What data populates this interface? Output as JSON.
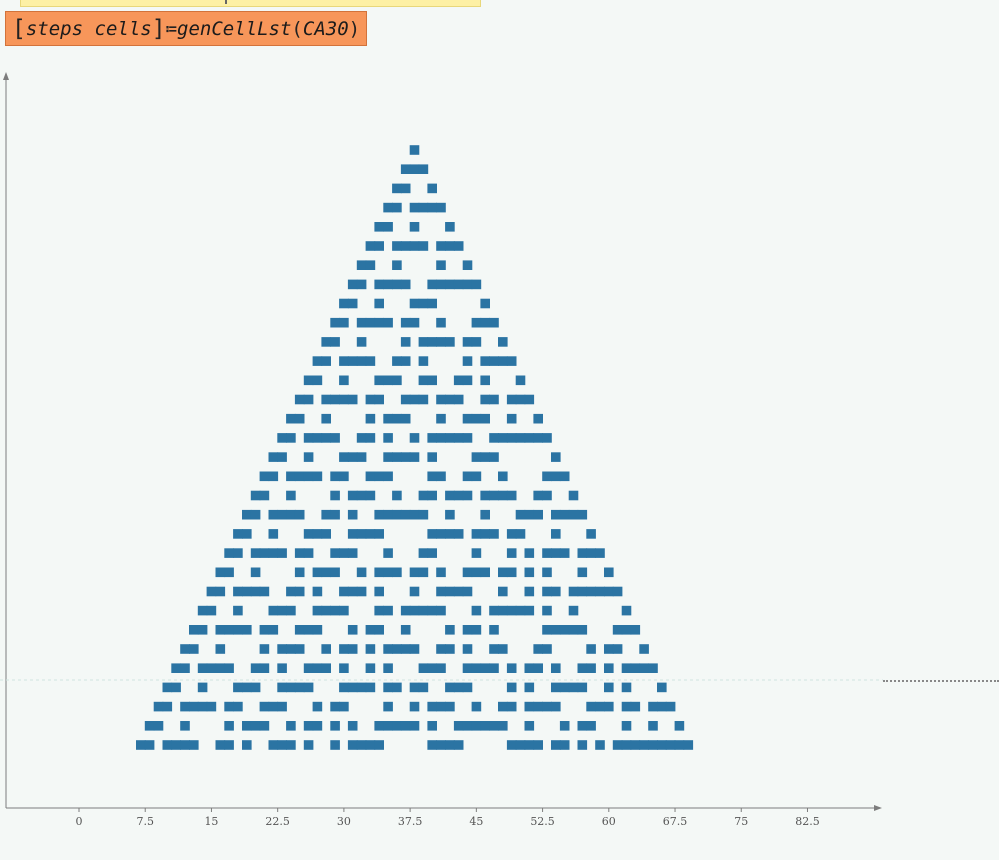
{
  "worksheet": {
    "definition": {
      "lhs_items": [
        "steps",
        "cells"
      ],
      "operator": "≔",
      "function": "genCellLst",
      "argument": "CA30"
    }
  },
  "colors": {
    "cell": "#2b74a3",
    "axis": "#7d7d7d",
    "region_math": "#f7965a",
    "region_prev": "#fdf0a4",
    "background": "#f4f8f6"
  },
  "chart_data": {
    "type": "scatter",
    "description_rule": 30,
    "marker": "square",
    "steps": 32,
    "x_ticks": [
      0,
      7.5,
      15,
      22.5,
      30,
      37.5,
      45,
      52.5,
      60,
      67.5,
      75,
      82.5
    ],
    "x_tick_labels": [
      "0",
      "7.5",
      "15",
      "22.5",
      "30",
      "37.5",
      "45",
      "52.5",
      "60",
      "67.5",
      "75",
      "82.5"
    ],
    "grid": false,
    "legend": "none"
  }
}
